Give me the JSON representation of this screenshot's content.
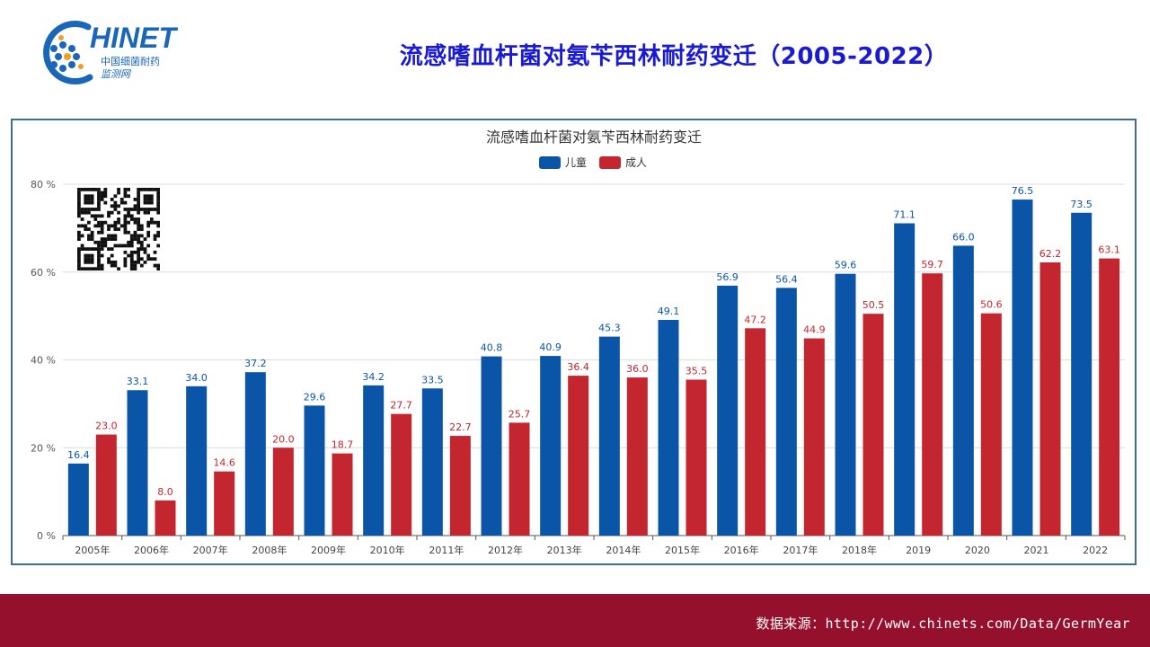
{
  "logo": {
    "wordmark": "HINET",
    "initial": "C",
    "subtitle_line1": "中国细菌耐药",
    "subtitle_line2": "监测网"
  },
  "slide_title": "流感嗜血杆菌对氨苄西林耐药变迁（2005-2022）",
  "footer": {
    "source_text": "数据来源：http://www.chinets.com/Data/GermYear"
  },
  "colors": {
    "children": "#0a55a8",
    "adults": "#c3262e",
    "title_blue": "#1a1ad0",
    "footer_band": "#94102d",
    "frame_border": "#3b6f8a"
  },
  "chart_data": {
    "type": "bar",
    "title": "流感嗜血杆菌对氨苄西林耐药变迁",
    "categories": [
      "2005年",
      "2006年",
      "2007年",
      "2008年",
      "2009年",
      "2010年",
      "2011年",
      "2012年",
      "2013年",
      "2014年",
      "2015年",
      "2016年",
      "2017年",
      "2018年",
      "2019",
      "2020",
      "2021",
      "2022"
    ],
    "series": [
      {
        "name": "儿童",
        "color": "#0a55a8",
        "values": [
          16.4,
          33.1,
          34.0,
          37.2,
          29.6,
          34.2,
          33.5,
          40.8,
          40.9,
          45.3,
          49.1,
          56.9,
          56.4,
          59.6,
          71.1,
          66.0,
          76.5,
          73.5
        ]
      },
      {
        "name": "成人",
        "color": "#c3262e",
        "values": [
          23.0,
          8.0,
          14.6,
          20.0,
          18.7,
          27.7,
          22.7,
          25.7,
          36.4,
          36.0,
          35.5,
          47.2,
          44.9,
          50.5,
          59.7,
          50.6,
          62.2,
          63.1
        ]
      }
    ],
    "ylim": [
      0,
      80
    ],
    "yticks": [
      0,
      20,
      40,
      60,
      80
    ],
    "ytick_labels": [
      "0 %",
      "20 %",
      "40 %",
      "60 %",
      "80 %"
    ],
    "grid": true,
    "legend_position": "top-center"
  }
}
